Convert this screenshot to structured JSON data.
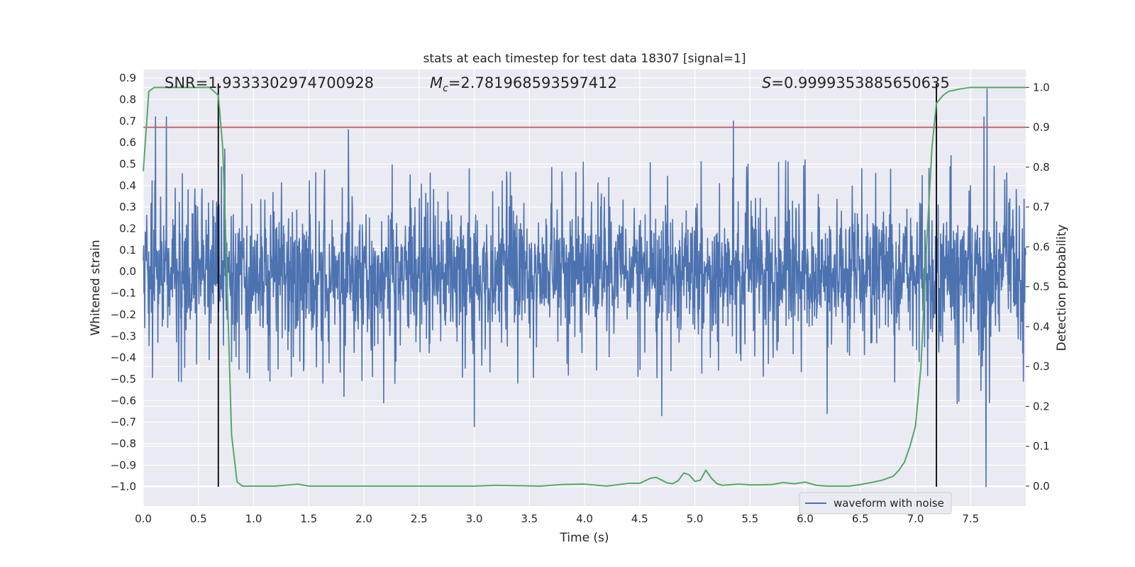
{
  "chart_data": {
    "type": "line",
    "title": "stats at each timestep for test data 18307 [signal=1]",
    "xlabel": "Time (s)",
    "ylabel": "Whitened strain",
    "y2label": "Detection probability",
    "xlim": [
      0.0,
      8.0
    ],
    "ylim": [
      -1.09,
      0.94
    ],
    "y2lim": [
      -0.05,
      1.045
    ],
    "x_ticks": [
      "0.0",
      "0.5",
      "1.0",
      "1.5",
      "2.0",
      "2.5",
      "3.0",
      "3.5",
      "4.0",
      "4.5",
      "5.0",
      "5.5",
      "6.0",
      "6.5",
      "7.0",
      "7.5"
    ],
    "y_ticks": [
      "0.9",
      "0.8",
      "0.7",
      "0.6",
      "0.5",
      "0.4",
      "0.3",
      "0.2",
      "0.1",
      "0.0",
      "−0.1",
      "−0.2",
      "−0.3",
      "−0.4",
      "−0.5",
      "−0.6",
      "−0.7",
      "−0.8",
      "−0.9",
      "−1.0"
    ],
    "y2_ticks": [
      "1.0",
      "0.9",
      "0.8",
      "0.7",
      "0.6",
      "0.5",
      "0.4",
      "0.3",
      "0.2",
      "0.1",
      "0.0"
    ],
    "annotations": {
      "snr": "SNR=1.9333302974700928",
      "mc_symbol": "M",
      "mc_sub": "c",
      "mc_value": "=2.781968593597412",
      "s_symbol": "S",
      "s_value": "=0.9999353885650635"
    },
    "threshold": {
      "axis": "y2",
      "value": 0.9,
      "color": "#c44e52"
    },
    "vertical_lines": [
      0.68,
      7.19
    ],
    "vline_ymax_axis_y2": 1.01,
    "vline_ymin_axis_y": -1.0,
    "series": [
      {
        "name": "waveform with noise",
        "axis": "y",
        "color": "#4c72b0",
        "kind": "noise",
        "x_range": [
          0.0,
          8.0
        ],
        "n_points": 2600,
        "seed": 18307,
        "core_amplitude": 0.25,
        "spike_peaks": [
          {
            "x": 0.11,
            "y": 0.72
          },
          {
            "x": 0.21,
            "y": 0.72
          },
          {
            "x": 0.74,
            "y": 0.57
          },
          {
            "x": 1.86,
            "y": 0.66
          },
          {
            "x": 5.35,
            "y": 0.7
          },
          {
            "x": 7.62,
            "y": 0.72
          },
          {
            "x": 7.65,
            "y": 0.85
          },
          {
            "x": 3.0,
            "y": -0.72
          },
          {
            "x": 1.82,
            "y": -0.58
          },
          {
            "x": 4.7,
            "y": -0.67
          },
          {
            "x": 6.2,
            "y": -0.66
          },
          {
            "x": 7.64,
            "y": -1.0
          },
          {
            "x": 0.32,
            "y": -0.51
          },
          {
            "x": 2.18,
            "y": -0.61
          }
        ]
      },
      {
        "name": "detection probability",
        "axis": "y2",
        "color": "#55a868",
        "kind": "line",
        "x": [
          0.0,
          0.05,
          0.1,
          0.2,
          0.3,
          0.4,
          0.5,
          0.6,
          0.68,
          0.72,
          0.75,
          0.8,
          0.85,
          0.9,
          1.0,
          1.2,
          1.4,
          1.5,
          2.0,
          2.5,
          3.0,
          3.2,
          3.6,
          3.8,
          4.0,
          4.2,
          4.4,
          4.5,
          4.6,
          4.65,
          4.7,
          4.75,
          4.8,
          4.85,
          4.9,
          4.95,
          5.0,
          5.05,
          5.1,
          5.15,
          5.2,
          5.25,
          5.3,
          5.4,
          5.5,
          5.6,
          5.7,
          5.8,
          5.9,
          6.0,
          6.1,
          6.2,
          6.4,
          6.5,
          6.6,
          6.7,
          6.8,
          6.85,
          6.9,
          6.95,
          7.0,
          7.05,
          7.1,
          7.15,
          7.19,
          7.25,
          7.3,
          7.4,
          7.5,
          7.6,
          7.7,
          8.0
        ],
        "y": [
          0.79,
          0.99,
          1.0,
          1.0,
          1.0,
          1.0,
          1.0,
          1.0,
          0.98,
          0.85,
          0.6,
          0.13,
          0.01,
          0.0,
          0.0,
          0.0,
          0.005,
          0.0,
          0.0,
          0.0,
          0.0,
          0.002,
          0.0,
          0.004,
          0.005,
          0.0,
          0.007,
          0.007,
          0.02,
          0.022,
          0.015,
          0.008,
          0.006,
          0.014,
          0.033,
          0.028,
          0.012,
          0.015,
          0.04,
          0.02,
          0.006,
          0.002,
          0.003,
          0.005,
          0.003,
          0.003,
          0.004,
          0.009,
          0.006,
          0.01,
          0.002,
          0.0,
          0.0,
          0.004,
          0.009,
          0.015,
          0.025,
          0.04,
          0.06,
          0.1,
          0.15,
          0.3,
          0.6,
          0.85,
          0.96,
          0.98,
          0.99,
          0.996,
          1.0,
          1.0,
          1.0,
          1.0
        ]
      }
    ],
    "legend": {
      "label": "waveform with noise",
      "placement": "lower-right"
    },
    "colors": {
      "axes_bg": "#eaeaf2",
      "grid": "#ffffff",
      "waveform": "#4c72b0",
      "probability": "#55a868",
      "threshold": "#c44e52",
      "vline": "#000000"
    }
  }
}
